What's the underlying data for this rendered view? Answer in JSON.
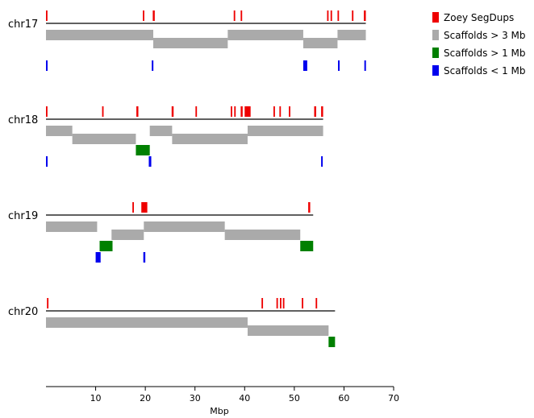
{
  "chart_data": {
    "type": "genome-track",
    "xlabel": "Mbp",
    "xlim": [
      0,
      70
    ],
    "xticks": [
      10,
      20,
      30,
      40,
      50,
      60,
      70
    ],
    "legend": {
      "position": "top-right",
      "entries": [
        {
          "key": "segdups",
          "label": "Zoey SegDups",
          "color": "#ee0000"
        },
        {
          "key": "gt3",
          "label": "Scaffolds > 3 Mb",
          "color": "#aaaaaa"
        },
        {
          "key": "gt1",
          "label": "Scaffolds > 1 Mb",
          "color": "#008000"
        },
        {
          "key": "lt1",
          "label": "Scaffolds < 1 Mb",
          "color": "#0000ee"
        }
      ]
    },
    "chromosomes": [
      {
        "name": "chr17",
        "length": 64.4,
        "segdups": [
          [
            0,
            0.3
          ],
          [
            19.5,
            19.8
          ],
          [
            21.5,
            21.9
          ],
          [
            37.8,
            38.1
          ],
          [
            39.2,
            39.5
          ],
          [
            56.6,
            56.9
          ],
          [
            57.3,
            57.6
          ],
          [
            58.7,
            59
          ],
          [
            61.6,
            61.9
          ],
          [
            64,
            64.4
          ]
        ],
        "scaffolds_gt3": [
          [
            0,
            21.6
          ],
          [
            21.6,
            36.6
          ],
          [
            36.6,
            51.8
          ],
          [
            51.8,
            58.7
          ],
          [
            58.7,
            64.4
          ]
        ],
        "scaffolds_gt1": [],
        "scaffolds_lt1": [
          [
            0,
            0.3
          ],
          [
            21.3,
            21.6
          ],
          [
            51.8,
            52.6
          ],
          [
            58.8,
            59.1
          ],
          [
            64.1,
            64.4
          ]
        ]
      },
      {
        "name": "chr18",
        "length": 55.8,
        "segdups": [
          [
            0,
            0.3
          ],
          [
            11.3,
            11.6
          ],
          [
            18.2,
            18.6
          ],
          [
            25.3,
            25.7
          ],
          [
            30.1,
            30.4
          ],
          [
            37.2,
            37.5
          ],
          [
            37.9,
            38.2
          ],
          [
            39.2,
            39.6
          ],
          [
            40,
            41.2
          ],
          [
            45.8,
            46.1
          ],
          [
            47,
            47.3
          ],
          [
            48.9,
            49.2
          ],
          [
            54,
            54.4
          ],
          [
            55.4,
            55.8
          ]
        ],
        "scaffolds_gt3": [
          [
            0,
            5.3
          ],
          [
            5.3,
            18.1
          ],
          [
            20.9,
            25.4
          ],
          [
            25.4,
            40.6
          ],
          [
            40.6,
            55.8
          ]
        ],
        "scaffolds_gt1": [
          [
            18.1,
            20.9
          ]
        ],
        "scaffolds_lt1": [
          [
            0,
            0.3
          ],
          [
            20.7,
            21.2
          ],
          [
            55.4,
            55.7
          ]
        ]
      },
      {
        "name": "chr19",
        "length": 53.8,
        "segdups": [
          [
            17.4,
            17.7
          ],
          [
            19.2,
            20.4
          ],
          [
            52.8,
            53.2
          ]
        ],
        "scaffolds_gt3": [
          [
            0,
            10.3
          ],
          [
            13.2,
            19.7
          ],
          [
            19.7,
            36
          ],
          [
            36,
            51.2
          ]
        ],
        "scaffolds_gt1": [
          [
            10.8,
            13.4
          ],
          [
            51.2,
            53.8
          ]
        ],
        "scaffolds_lt1": [
          [
            10,
            11
          ],
          [
            19.6,
            20
          ]
        ]
      },
      {
        "name": "chr20",
        "length": 58.2,
        "segdups": [
          [
            0.2,
            0.5
          ],
          [
            43.4,
            43.7
          ],
          [
            46.4,
            46.7
          ],
          [
            47.1,
            47.4
          ],
          [
            47.7,
            48
          ],
          [
            51.5,
            51.8
          ],
          [
            54.3,
            54.6
          ]
        ],
        "scaffolds_gt3": [
          [
            0,
            40.6
          ],
          [
            40.6,
            56.9
          ]
        ],
        "scaffolds_gt1": [
          [
            56.9,
            58.2
          ]
        ],
        "scaffolds_lt1": []
      }
    ]
  }
}
